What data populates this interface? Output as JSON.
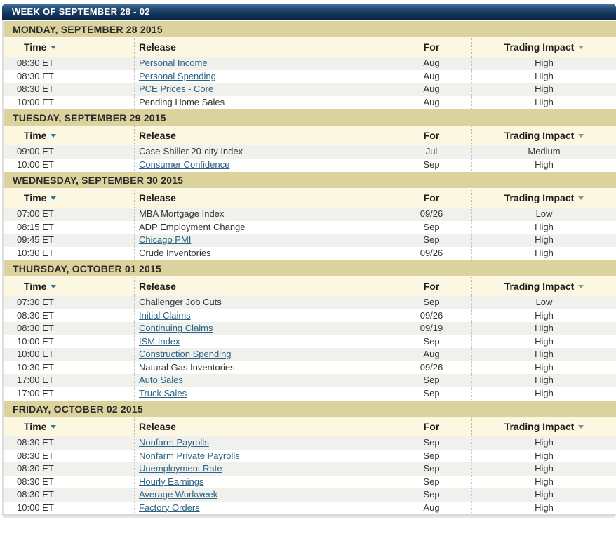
{
  "week_header": {
    "title": "WEEK OF SEPTEMBER 28 - 02"
  },
  "columns": {
    "time": "Time",
    "release": "Release",
    "for": "For",
    "impact": "Trading Impact"
  },
  "colors": {
    "week_bar_top": "#4b7ba2",
    "week_bar_bottom": "#0a2440",
    "day_header_bg": "#dcd29e",
    "column_header_bg": "#fbf7e0",
    "row_alt_bg": "#f0f0ed",
    "link": "#2d6383",
    "time_sort_arrow": "#2779a7",
    "impact_sort_arrow": "#909090"
  },
  "days": [
    {
      "label": "MONDAY, SEPTEMBER 28 2015",
      "rows": [
        {
          "time": "08:30 ET",
          "release": "Personal Income",
          "link": true,
          "for": "Aug",
          "impact": "High"
        },
        {
          "time": "08:30 ET",
          "release": "Personal Spending",
          "link": true,
          "for": "Aug",
          "impact": "High"
        },
        {
          "time": "08:30 ET",
          "release": "PCE Prices - Core",
          "link": true,
          "for": "Aug",
          "impact": "High"
        },
        {
          "time": "10:00 ET",
          "release": "Pending Home Sales",
          "link": false,
          "for": "Aug",
          "impact": "High"
        }
      ]
    },
    {
      "label": "TUESDAY, SEPTEMBER 29 2015",
      "rows": [
        {
          "time": "09:00 ET",
          "release": "Case-Shiller 20-city Index",
          "link": false,
          "for": "Jul",
          "impact": "Medium"
        },
        {
          "time": "10:00 ET",
          "release": "Consumer Confidence",
          "link": true,
          "for": "Sep",
          "impact": "High"
        }
      ]
    },
    {
      "label": "WEDNESDAY, SEPTEMBER 30 2015",
      "rows": [
        {
          "time": "07:00 ET",
          "release": "MBA Mortgage Index",
          "link": false,
          "for": "09/26",
          "impact": "Low"
        },
        {
          "time": "08:15 ET",
          "release": "ADP Employment Change",
          "link": false,
          "for": "Sep",
          "impact": "High"
        },
        {
          "time": "09:45 ET",
          "release": "Chicago PMI",
          "link": true,
          "for": "Sep",
          "impact": "High"
        },
        {
          "time": "10:30 ET",
          "release": "Crude Inventories",
          "link": false,
          "for": "09/26",
          "impact": "High"
        }
      ]
    },
    {
      "label": "THURSDAY, OCTOBER 01 2015",
      "rows": [
        {
          "time": "07:30 ET",
          "release": "Challenger Job Cuts",
          "link": false,
          "for": "Sep",
          "impact": "Low"
        },
        {
          "time": "08:30 ET",
          "release": "Initial Claims",
          "link": true,
          "for": "09/26",
          "impact": "High"
        },
        {
          "time": "08:30 ET",
          "release": "Continuing Claims",
          "link": true,
          "for": "09/19",
          "impact": "High"
        },
        {
          "time": "10:00 ET",
          "release": "ISM Index",
          "link": true,
          "for": "Sep",
          "impact": "High"
        },
        {
          "time": "10:00 ET",
          "release": "Construction Spending",
          "link": true,
          "for": "Aug",
          "impact": "High"
        },
        {
          "time": "10:30 ET",
          "release": "Natural Gas Inventories",
          "link": false,
          "for": "09/26",
          "impact": "High"
        },
        {
          "time": "17:00 ET",
          "release": "Auto Sales",
          "link": true,
          "for": "Sep",
          "impact": "High"
        },
        {
          "time": "17:00 ET",
          "release": "Truck Sales",
          "link": true,
          "for": "Sep",
          "impact": "High"
        }
      ]
    },
    {
      "label": "FRIDAY, OCTOBER 02 2015",
      "rows": [
        {
          "time": "08:30 ET",
          "release": "Nonfarm Payrolls",
          "link": true,
          "for": "Sep",
          "impact": "High"
        },
        {
          "time": "08:30 ET",
          "release": "Nonfarm Private Payrolls",
          "link": true,
          "for": "Sep",
          "impact": "High"
        },
        {
          "time": "08:30 ET",
          "release": "Unemployment Rate",
          "link": true,
          "for": "Sep",
          "impact": "High"
        },
        {
          "time": "08:30 ET",
          "release": "Hourly Earnings",
          "link": true,
          "for": "Sep",
          "impact": "High"
        },
        {
          "time": "08:30 ET",
          "release": "Average Workweek",
          "link": true,
          "for": "Sep",
          "impact": "High"
        },
        {
          "time": "10:00 ET",
          "release": "Factory Orders",
          "link": true,
          "for": "Aug",
          "impact": "High"
        }
      ]
    }
  ]
}
